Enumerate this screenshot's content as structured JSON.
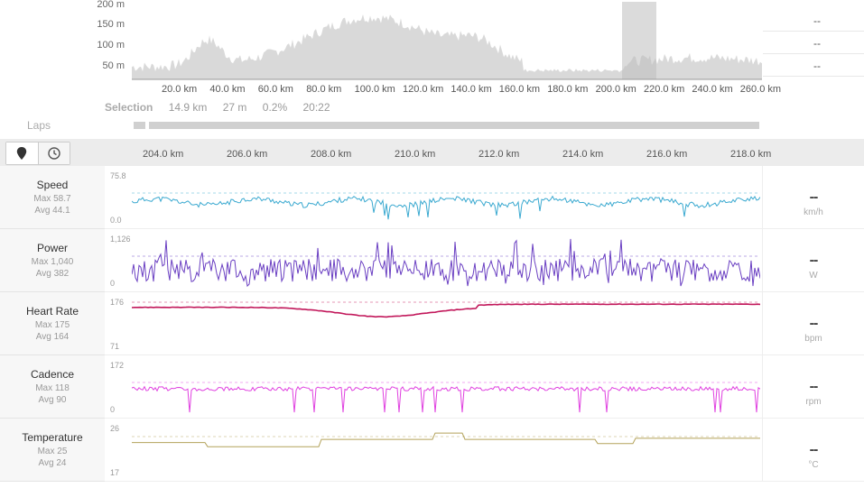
{
  "overview": {
    "elev_labels": [
      "200 m",
      "150 m",
      "100 m",
      "50 m"
    ],
    "dist_labels": [
      "20.0 km",
      "40.0 km",
      "60.0 km",
      "80.0 km",
      "100.0 km",
      "120.0 km",
      "140.0 km",
      "160.0 km",
      "180.0 km",
      "200.0 km",
      "220.0 km",
      "240.0 km",
      "260.0 km"
    ],
    "side_values": [
      "--",
      "--",
      "--"
    ],
    "fill_color": "#d9d9d9",
    "selection_color": "#bdbdbd"
  },
  "selection": {
    "title": "Selection",
    "distance": "14.9 km",
    "elevation": "27 m",
    "grade": "0.2%",
    "time": "20:22"
  },
  "laps": {
    "label": "Laps"
  },
  "mode_buttons": {
    "distance_icon": "map-pin-icon",
    "time_icon": "clock-icon"
  },
  "axis_labels": [
    "204.0 km",
    "206.0 km",
    "208.0 km",
    "210.0 km",
    "212.0 km",
    "214.0 km",
    "216.0 km",
    "218.0 km"
  ],
  "metrics": [
    {
      "key": "speed",
      "title": "Speed",
      "max": "Max 58.7",
      "avg": "Avg 44.1",
      "ymax": "75.8",
      "ymin": "0.0",
      "value": "--",
      "unit": "km/h",
      "color": "#3aa9d0"
    },
    {
      "key": "power",
      "title": "Power",
      "max": "Max 1,040",
      "avg": "Avg 382",
      "ymax": "1,126",
      "ymin": "0",
      "value": "--",
      "unit": "W",
      "color": "#6a3fc2"
    },
    {
      "key": "heart_rate",
      "title": "Heart Rate",
      "max": "Max 175",
      "avg": "Avg 164",
      "ymax": "176",
      "ymin": "71",
      "value": "--",
      "unit": "bpm",
      "color": "#c2185b"
    },
    {
      "key": "cadence",
      "title": "Cadence",
      "max": "Max 118",
      "avg": "Avg 90",
      "ymax": "172",
      "ymin": "0",
      "value": "--",
      "unit": "rpm",
      "color": "#e040e0"
    },
    {
      "key": "temperature",
      "title": "Temperature",
      "max": "Max 25",
      "avg": "Avg 24",
      "ymax": "26",
      "ymin": "17",
      "value": "--",
      "unit": "°C",
      "color": "#b3a25a"
    }
  ]
}
